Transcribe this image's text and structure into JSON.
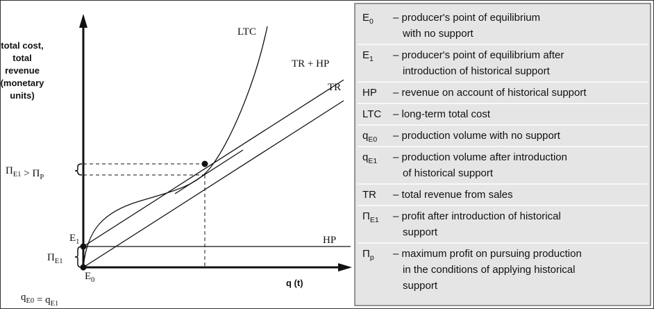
{
  "diagram": {
    "y_axis_label": [
      "total cost,",
      "total",
      "revenue",
      "(monetary",
      "units)"
    ],
    "x_axis_label": "q (t)",
    "curve_labels": {
      "ltc": "LTC",
      "tr_hp": "TR + HP",
      "tr": "TR",
      "hp": "HP"
    },
    "point_labels": {
      "e1": {
        "main": "E",
        "sub": "1"
      },
      "e0": {
        "main": "E",
        "sub": "0"
      }
    },
    "brace_labels": {
      "profit_compare": [
        {
          "main": "Π",
          "sub": "E1"
        },
        " > ",
        {
          "main": "Π",
          "sub": "P"
        }
      ],
      "profit_e1": {
        "main": "Π",
        "sub": "E1"
      }
    },
    "q_label": [
      {
        "main": "q",
        "sub": "E0"
      },
      " = ",
      {
        "main": "q",
        "sub": "E1"
      }
    ]
  },
  "legend": {
    "rows": [
      {
        "symbol": {
          "main": "E",
          "sub": "0"
        },
        "lines": [
          "– producer's point of equilibrium",
          "with no support"
        ]
      },
      {
        "symbol": {
          "main": "E",
          "sub": "1"
        },
        "lines": [
          "– producer's point of equilibrium after",
          "introduction of historical support"
        ]
      },
      {
        "symbol": "HP",
        "lines": [
          "– revenue on account of historical support"
        ]
      },
      {
        "symbol": "LTC",
        "lines": [
          "– long-term total cost"
        ]
      },
      {
        "symbol": {
          "main": "q",
          "sub": "E0"
        },
        "lines": [
          "– production volume with no support"
        ]
      },
      {
        "symbol": {
          "main": "q",
          "sub": "E1"
        },
        "lines": [
          "– production volume after introduction",
          "of historical support"
        ]
      },
      {
        "symbol": "TR",
        "lines": [
          "– total revenue from sales"
        ]
      },
      {
        "symbol": {
          "main": "Π",
          "sub": "E1"
        },
        "lines": [
          "– profit after introduction of historical",
          "support"
        ]
      },
      {
        "symbol": {
          "main": "Π",
          "sub": "p"
        },
        "lines": [
          "– maximum profit on pursuing production",
          "in the conditions of applying historical",
          "support"
        ]
      }
    ]
  }
}
